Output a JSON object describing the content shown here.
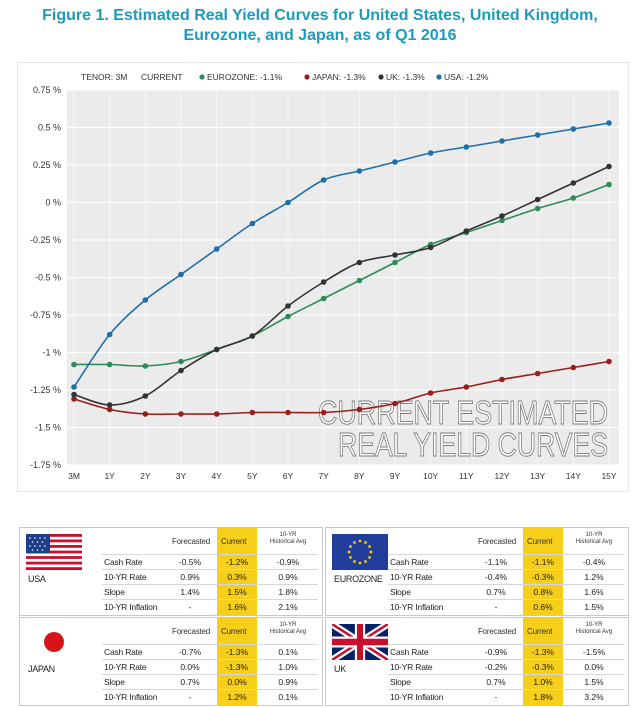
{
  "title": {
    "line1": "Figure 1. Estimated Real Yield Curves for United States, United Kingdom,",
    "line2": "Eurozone, and Japan, as of Q1 2016"
  },
  "chart_data": {
    "type": "line",
    "legend_text": [
      "TENOR: 3M",
      "CURRENT"
    ],
    "watermark": [
      "CURRENT ESTIMATED",
      "REAL YIELD CURVES"
    ],
    "categories": [
      "3M",
      "1Y",
      "2Y",
      "3Y",
      "4Y",
      "5Y",
      "6Y",
      "7Y",
      "8Y",
      "9Y",
      "10Y",
      "11Y",
      "12Y",
      "13Y",
      "14Y",
      "15Y"
    ],
    "y_ticks": [
      "0.75 %",
      "0.5 %",
      "0.25 %",
      "0 %",
      "-0.25 %",
      "-0.5 %",
      "-0.75 %",
      "-1 %",
      "-1.25 %",
      "-1.5 %",
      "-1.75 %"
    ],
    "ylim": [
      -1.75,
      0.75
    ],
    "grid": true,
    "series": [
      {
        "name": "EUROZONE",
        "label": "EUROZONE: -1.1%",
        "color": "#2e8b57",
        "values": [
          -1.08,
          -1.08,
          -1.09,
          -1.06,
          -0.98,
          -0.89,
          -0.76,
          -0.64,
          -0.52,
          -0.4,
          -0.28,
          -0.2,
          -0.12,
          -0.04,
          0.03,
          0.12
        ]
      },
      {
        "name": "JAPAN",
        "label": "JAPAN: -1.3%",
        "color": "#9a1f1a",
        "values": [
          -1.31,
          -1.38,
          -1.41,
          -1.41,
          -1.41,
          -1.4,
          -1.4,
          -1.4,
          -1.38,
          -1.34,
          -1.27,
          -1.23,
          -1.18,
          -1.14,
          -1.1,
          -1.06
        ]
      },
      {
        "name": "UK",
        "label": "UK: -1.3%",
        "color": "#333333",
        "values": [
          -1.28,
          -1.35,
          -1.29,
          -1.12,
          -0.98,
          -0.89,
          -0.69,
          -0.53,
          -0.4,
          -0.35,
          -0.3,
          -0.19,
          -0.09,
          0.02,
          0.13,
          0.24
        ]
      },
      {
        "name": "USA",
        "label": "USA: -1.2%",
        "color": "#1f6fa8",
        "values": [
          -1.23,
          -0.88,
          -0.65,
          -0.48,
          -0.31,
          -0.14,
          0.0,
          0.15,
          0.21,
          0.27,
          0.33,
          0.37,
          0.41,
          0.45,
          0.49,
          0.53
        ]
      }
    ]
  },
  "tables": {
    "headers": {
      "forecasted": "Forecasted",
      "current": "Current",
      "hist_line1": "10-YR",
      "hist_line2": "Historical Avg"
    },
    "rows": [
      "Cash Rate",
      "10-YR Rate",
      "Slope",
      "10-YR Inflation"
    ],
    "usa": {
      "name": "USA",
      "values": [
        [
          "-0.5%",
          "-1.2%",
          "-0.9%"
        ],
        [
          "0.9%",
          "0.3%",
          "0.9%"
        ],
        [
          "1.4%",
          "1.5%",
          "1.8%"
        ],
        [
          "-",
          "1.6%",
          "2.1%"
        ]
      ]
    },
    "eurozone": {
      "name": "EUROZONE",
      "values": [
        [
          "-1.1%",
          "-1.1%",
          "-0.4%"
        ],
        [
          "-0.4%",
          "-0.3%",
          "1.2%"
        ],
        [
          "0.7%",
          "0.8%",
          "1.6%"
        ],
        [
          "-",
          "0.6%",
          "1.5%"
        ]
      ]
    },
    "japan": {
      "name": "JAPAN",
      "values": [
        [
          "-0.7%",
          "-1.3%",
          "0.1%"
        ],
        [
          "0.0%",
          "-1.3%",
          "1.0%"
        ],
        [
          "0.7%",
          "0.0%",
          "0.9%"
        ],
        [
          "-",
          "1.2%",
          "0.1%"
        ]
      ]
    },
    "uk": {
      "name": "UK",
      "values": [
        [
          "-0.9%",
          "-1.3%",
          "-1.5%"
        ],
        [
          "-0.2%",
          "-0.3%",
          "0.0%"
        ],
        [
          "0.7%",
          "1.0%",
          "1.5%"
        ],
        [
          "-",
          "1.8%",
          "3.2%"
        ]
      ]
    }
  },
  "colors": {
    "title": "#1b9bbf",
    "highlight": "#f6cf1a",
    "plot_bg": "#ebebeb"
  },
  "icons": {
    "usa": "us-flag-icon",
    "eurozone": "eu-flag-icon",
    "japan": "japan-flag-icon",
    "uk": "uk-flag-icon"
  }
}
